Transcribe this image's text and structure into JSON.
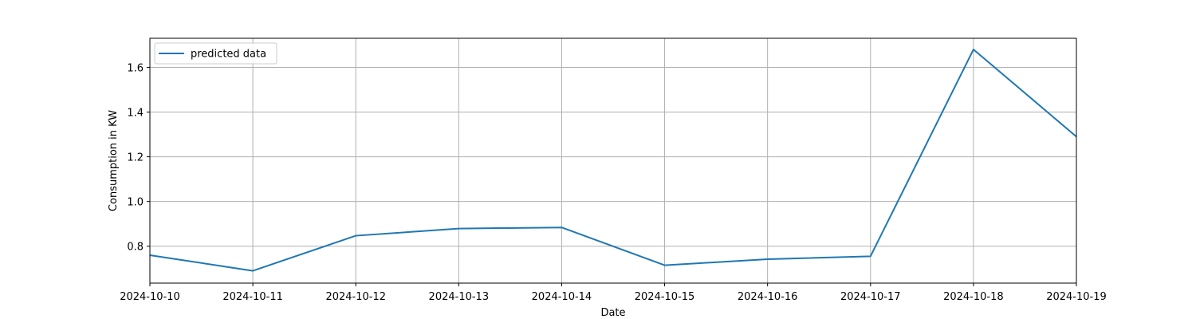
{
  "chart_data": {
    "type": "line",
    "title": "",
    "xlabel": "Date",
    "ylabel": "Consumption in KW",
    "x": [
      "2024-10-10",
      "2024-10-11",
      "2024-10-12",
      "2024-10-13",
      "2024-10-14",
      "2024-10-15",
      "2024-10-16",
      "2024-10-17",
      "2024-10-18",
      "2024-10-19"
    ],
    "series": [
      {
        "name": "predicted data",
        "color": "#1f77b4",
        "values": [
          0.76,
          0.69,
          0.847,
          0.879,
          0.884,
          0.715,
          0.742,
          0.755,
          1.68,
          1.29
        ]
      }
    ],
    "yticks": [
      "0.8",
      "1.0",
      "1.2",
      "1.4",
      "1.6"
    ],
    "ylim": [
      0.635,
      1.73
    ],
    "grid": true,
    "legend_position": "top-left"
  }
}
